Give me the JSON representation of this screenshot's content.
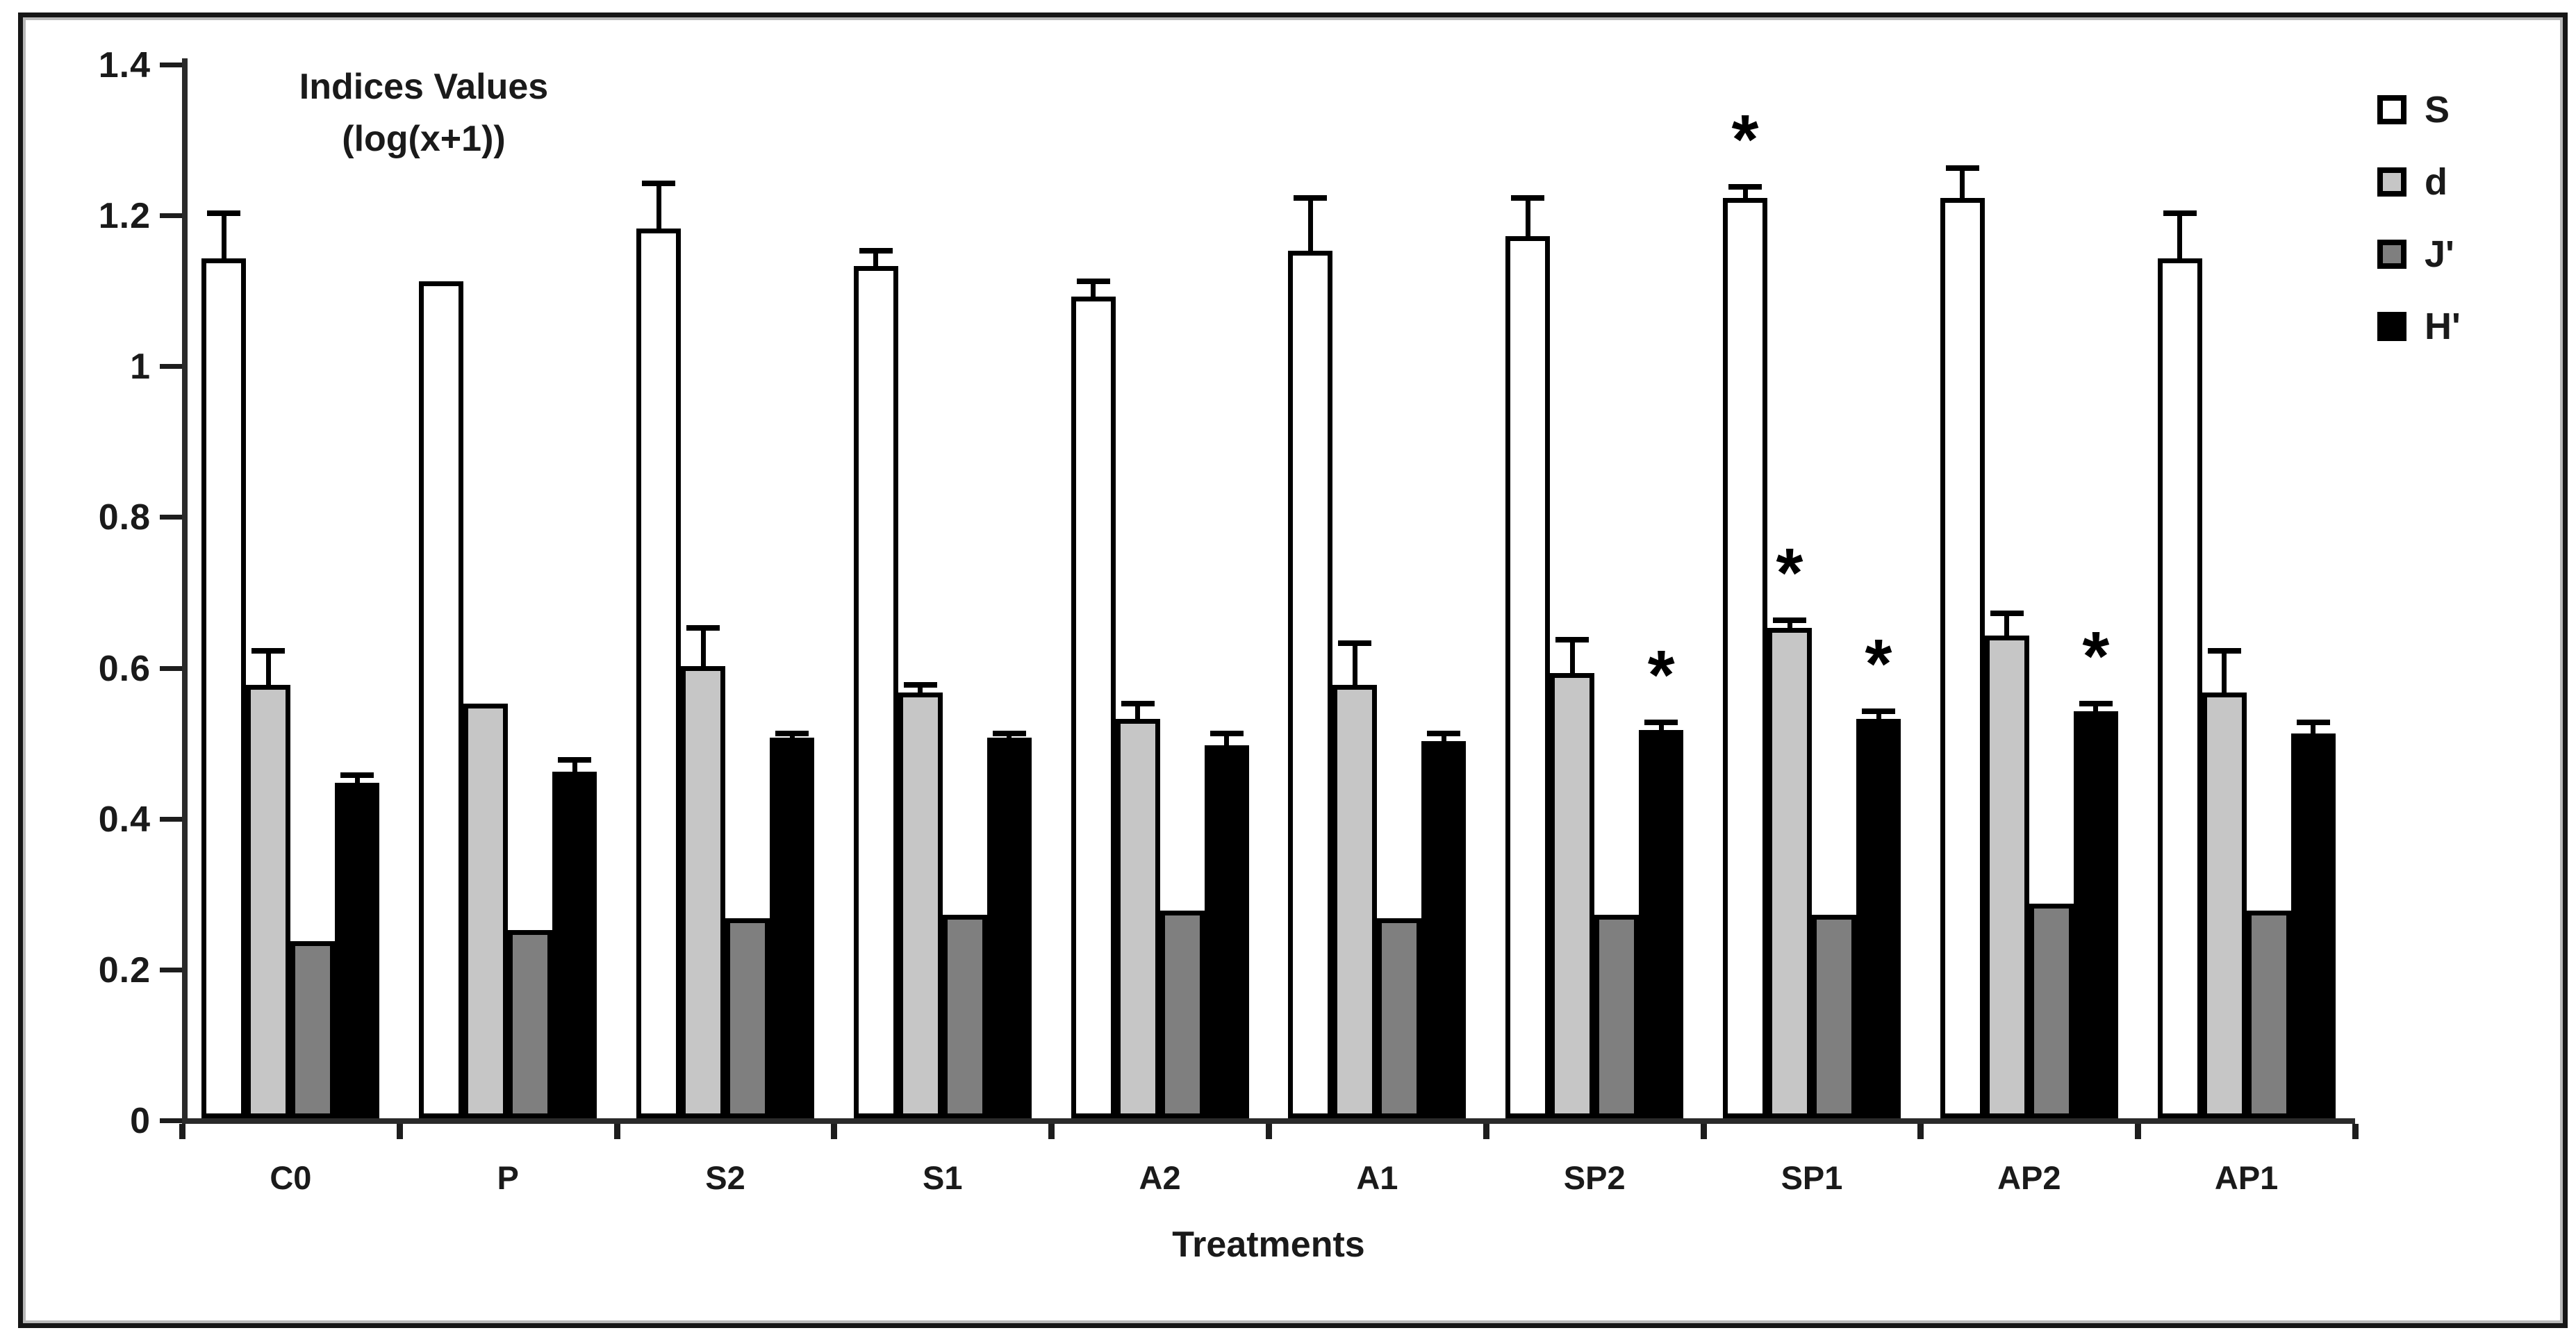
{
  "figure": {
    "y_axis_title_line1": "Indices Values",
    "y_axis_title_line2": "(log(x+1))",
    "x_axis_title": "Treatments",
    "significance_marker": "*",
    "colors": {
      "bar_outline": "#000000",
      "series_S_fill": "#ffffff",
      "series_d_fill": "#c6c6c6",
      "series_J_fill": "#7f7f7f",
      "series_H_fill": "#000000",
      "frame_border": "#161616"
    }
  },
  "chart_data": {
    "type": "bar",
    "title": "",
    "xlabel": "Treatments",
    "ylabel": "Indices Values (log(x+1))",
    "ylim": [
      0,
      1.4
    ],
    "grid": false,
    "legend_position": "top-right",
    "y_ticks": [
      0,
      0.2,
      0.4,
      0.6,
      0.8,
      1,
      1.2,
      1.4
    ],
    "y_tick_labels": [
      "0",
      "0.2",
      "0.4",
      "0.6",
      "0.8",
      "1",
      "1.2",
      "1.4"
    ],
    "categories": [
      "C0",
      "P",
      "S2",
      "S1",
      "A2",
      "A1",
      "SP2",
      "SP1",
      "AP2",
      "AP1"
    ],
    "series": [
      {
        "name": "S",
        "fill": "#ffffff",
        "values": [
          1.14,
          1.11,
          1.18,
          1.13,
          1.09,
          1.15,
          1.17,
          1.22,
          1.22,
          1.14
        ],
        "errors_up": [
          0.06,
          0,
          0.06,
          0.02,
          0.02,
          0.07,
          0.05,
          0.015,
          0.04,
          0.06
        ],
        "significant": [
          false,
          false,
          false,
          false,
          false,
          false,
          false,
          true,
          false,
          false
        ]
      },
      {
        "name": "d",
        "fill": "#c6c6c6",
        "values": [
          0.575,
          0.55,
          0.6,
          0.565,
          0.53,
          0.575,
          0.59,
          0.65,
          0.64,
          0.565
        ],
        "errors_up": [
          0.045,
          0,
          0.05,
          0.01,
          0.02,
          0.055,
          0.045,
          0.01,
          0.03,
          0.055
        ],
        "significant": [
          false,
          false,
          false,
          false,
          false,
          false,
          false,
          true,
          false,
          false
        ]
      },
      {
        "name": "J'",
        "fill": "#7f7f7f",
        "values": [
          0.235,
          0.25,
          0.265,
          0.27,
          0.275,
          0.265,
          0.27,
          0.27,
          0.285,
          0.275
        ],
        "errors_up": [
          0,
          0,
          0,
          0,
          0,
          0,
          0,
          0,
          0,
          0
        ],
        "significant": [
          false,
          false,
          false,
          false,
          false,
          false,
          false,
          false,
          false,
          false
        ]
      },
      {
        "name": "H'",
        "fill": "#000000",
        "values": [
          0.445,
          0.46,
          0.505,
          0.505,
          0.495,
          0.5,
          0.515,
          0.53,
          0.54,
          0.51
        ],
        "errors_up": [
          0.01,
          0.015,
          0.005,
          0.005,
          0.015,
          0.01,
          0.01,
          0.01,
          0.01,
          0.015
        ],
        "significant": [
          false,
          false,
          false,
          false,
          false,
          false,
          true,
          true,
          true,
          false
        ]
      }
    ]
  }
}
